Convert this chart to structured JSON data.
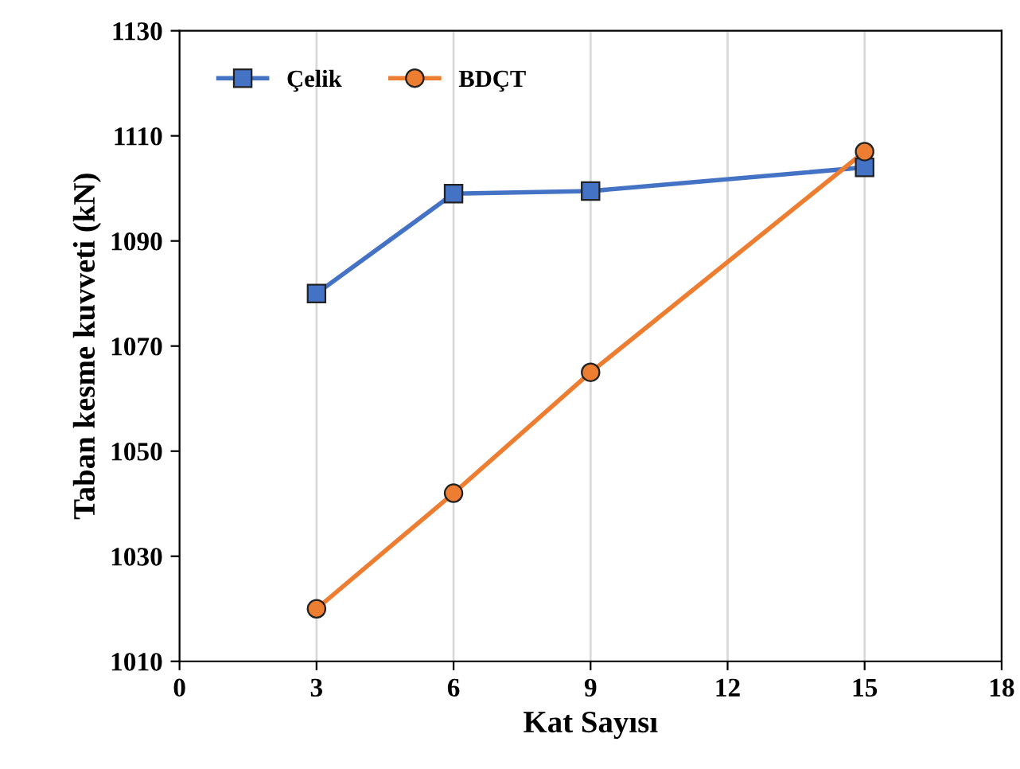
{
  "chart_data": {
    "type": "line",
    "xlabel": "Kat Sayısı",
    "ylabel": "Taban kesme kuvveti (kN)",
    "xlim": [
      0,
      18
    ],
    "xticks": [
      0,
      3,
      6,
      9,
      12,
      15,
      18
    ],
    "ylim": [
      1010,
      1130
    ],
    "yticks": [
      1010,
      1030,
      1050,
      1070,
      1090,
      1110,
      1130
    ],
    "grid": "x",
    "legend": "top left",
    "series": [
      {
        "name": "Çelik",
        "color": "#4472c4",
        "marker": "square",
        "x": [
          3,
          6,
          9,
          15
        ],
        "values": [
          1080,
          1099,
          1099.5,
          1104
        ]
      },
      {
        "name": "BDÇT",
        "color": "#ed7d31",
        "marker": "circle",
        "x": [
          3,
          6,
          9,
          15
        ],
        "values": [
          1020,
          1042,
          1065,
          1107
        ]
      }
    ]
  }
}
